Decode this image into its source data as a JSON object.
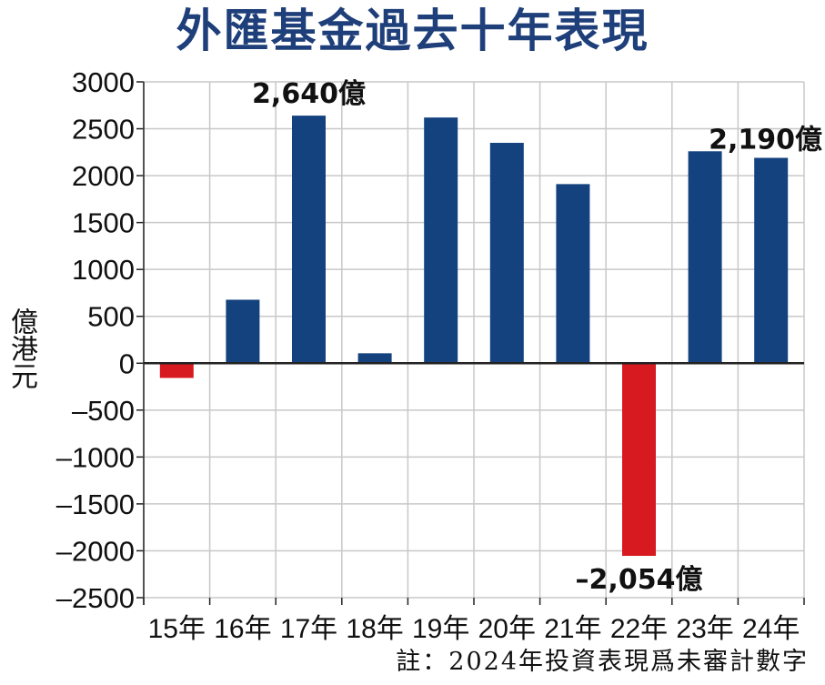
{
  "chart_data": {
    "type": "bar",
    "title": "外匯基金過去十年表現",
    "ylabel": "億港元",
    "categories": [
      "15年",
      "16年",
      "17年",
      "18年",
      "19年",
      "20年",
      "21年",
      "22年",
      "23年",
      "24年"
    ],
    "values": [
      -157,
      677,
      2640,
      106,
      2620,
      2350,
      1910,
      -2054,
      2260,
      2190
    ],
    "ylim": [
      -2500,
      3000
    ],
    "yticks": [
      "3000",
      "2500",
      "2000",
      "1500",
      "1000",
      "500",
      "0",
      "–500",
      "–1000",
      "–1500",
      "–2000",
      "–2500"
    ],
    "ytick_values": [
      3000,
      2500,
      2000,
      1500,
      1000,
      500,
      0,
      -500,
      -1000,
      -1500,
      -2000,
      -2500
    ],
    "annotations": [
      {
        "category_index": 2,
        "text": "2,640億"
      },
      {
        "category_index": 7,
        "text": "–2,054億"
      },
      {
        "category_index": 9,
        "text": "2,190億"
      }
    ],
    "grid": true,
    "colors": {
      "positive": "#14427e",
      "negative": "#d71920",
      "grid": "#c8c8c8",
      "axis": "#222222",
      "title": "#1e3f7a"
    },
    "note": "註：2024年投資表現爲未審計數字"
  }
}
